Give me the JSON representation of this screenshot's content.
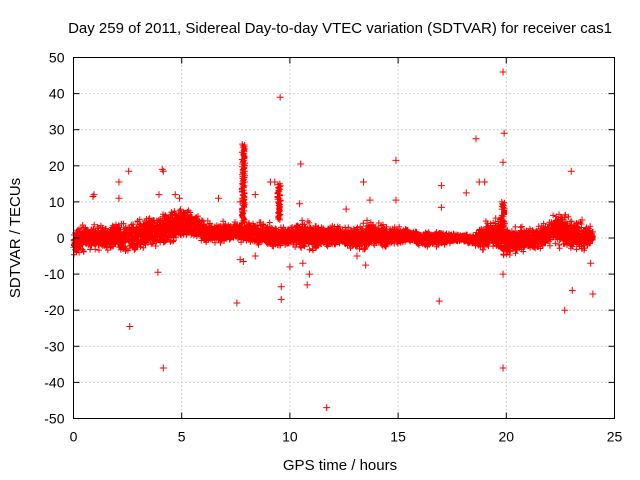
{
  "chart_data": {
    "type": "scatter",
    "title": "Day 259 of 2011, Sidereal Day-to-day VTEC variation (SDTVAR) for receiver cas1",
    "xlabel": "GPS time / hours",
    "ylabel": "SDTVAR / TECUs",
    "xlim": [
      0,
      25
    ],
    "ylim": [
      -50,
      50
    ],
    "xticks": [
      0,
      5,
      10,
      15,
      20,
      25
    ],
    "yticks": [
      -50,
      -40,
      -30,
      -20,
      -10,
      0,
      10,
      20,
      30,
      40,
      50
    ],
    "xtick_labels": [
      "0",
      "5",
      "10",
      "15",
      "20",
      "25"
    ],
    "ytick_labels": [
      "-50",
      "-40",
      "-30",
      "-20",
      "-10",
      "0",
      "10",
      "20",
      "30",
      "40",
      "50"
    ],
    "grid": true,
    "marker": "+",
    "color": "#ff0000",
    "band": {
      "description_source": "dense cloud of + markers around zero",
      "x": [
        0,
        0.5,
        1,
        1.5,
        2,
        2.5,
        3,
        3.5,
        4,
        4.5,
        5,
        5.5,
        6,
        6.5,
        7,
        7.5,
        8,
        8.5,
        9,
        9.5,
        10,
        10.5,
        11,
        11.5,
        12,
        12.5,
        13,
        13.5,
        14,
        14.5,
        15,
        15.5,
        16,
        16.5,
        17,
        17.5,
        18,
        18.5,
        19,
        19.5,
        20,
        20.5,
        21,
        21.5,
        22,
        22.5,
        23,
        23.5,
        24
      ],
      "upper": [
        2,
        3,
        3,
        3,
        4,
        4,
        5,
        6,
        6,
        7,
        8,
        7,
        5,
        4,
        4,
        4,
        4,
        4,
        4,
        3,
        3,
        5,
        4,
        3,
        3,
        3,
        3,
        4,
        4,
        3,
        3,
        2,
        1.5,
        1.5,
        2,
        1,
        1,
        1,
        4,
        5,
        3,
        2,
        3,
        3,
        5,
        7,
        5,
        4,
        3
      ],
      "lower": [
        -5,
        -3,
        -3,
        -3,
        -3,
        -4,
        -3,
        -2,
        -2,
        -1,
        0,
        1,
        -1,
        -1,
        -1,
        0,
        -1,
        -1,
        -3,
        -2,
        -2,
        -3,
        -3,
        -2,
        -2,
        -2,
        -3,
        -3,
        -2,
        -2,
        -2,
        -1,
        -2,
        -2,
        -2,
        -1,
        -1,
        -2,
        -3,
        -3,
        -5,
        -4,
        -3,
        -3,
        -2,
        -2,
        -3,
        -3,
        -2
      ]
    },
    "spikes": [
      {
        "x": 7.85,
        "y_from": 4,
        "y_to": 26
      },
      {
        "x": 9.5,
        "y_from": 5,
        "y_to": 15
      },
      {
        "x": 19.85,
        "y_from": 3,
        "y_to": 10
      }
    ],
    "outliers": [
      [
        0.9,
        11.5
      ],
      [
        0.95,
        12
      ],
      [
        2.1,
        15.5
      ],
      [
        2.55,
        18.5
      ],
      [
        2.6,
        -24.5
      ],
      [
        2.1,
        11
      ],
      [
        3.9,
        -9.5
      ],
      [
        3.95,
        12
      ],
      [
        4.1,
        19
      ],
      [
        4.15,
        18.5
      ],
      [
        4.15,
        -36
      ],
      [
        4.7,
        12
      ],
      [
        4.9,
        11
      ],
      [
        6.7,
        11
      ],
      [
        7.55,
        -18
      ],
      [
        7.7,
        10
      ],
      [
        7.7,
        -6
      ],
      [
        7.85,
        -6.5
      ],
      [
        8.4,
        12
      ],
      [
        8.4,
        -5
      ],
      [
        9.1,
        15.5
      ],
      [
        9.3,
        15.5
      ],
      [
        9.55,
        39
      ],
      [
        9.6,
        -17
      ],
      [
        9.6,
        -13.5
      ],
      [
        10.0,
        -8
      ],
      [
        10.45,
        9.5
      ],
      [
        10.5,
        20.5
      ],
      [
        10.6,
        -7
      ],
      [
        10.8,
        -13
      ],
      [
        10.9,
        -10
      ],
      [
        11.7,
        -47
      ],
      [
        12.6,
        8
      ],
      [
        13.1,
        -5
      ],
      [
        13.4,
        15.5
      ],
      [
        13.5,
        -7.5
      ],
      [
        13.7,
        10.5
      ],
      [
        14.9,
        21.5
      ],
      [
        14.9,
        10.5
      ],
      [
        16.9,
        -17.5
      ],
      [
        17.0,
        14.5
      ],
      [
        17.0,
        8.5
      ],
      [
        18.15,
        12.5
      ],
      [
        18.6,
        27.5
      ],
      [
        18.75,
        15.5
      ],
      [
        19.0,
        15.5
      ],
      [
        19.85,
        46
      ],
      [
        19.9,
        29
      ],
      [
        19.85,
        21
      ],
      [
        19.85,
        -36
      ],
      [
        19.85,
        -10
      ],
      [
        22.7,
        -20
      ],
      [
        23.0,
        18.5
      ],
      [
        23.05,
        -14.5
      ],
      [
        23.5,
        5
      ],
      [
        23.9,
        -7
      ],
      [
        24.0,
        -15.5
      ]
    ]
  }
}
